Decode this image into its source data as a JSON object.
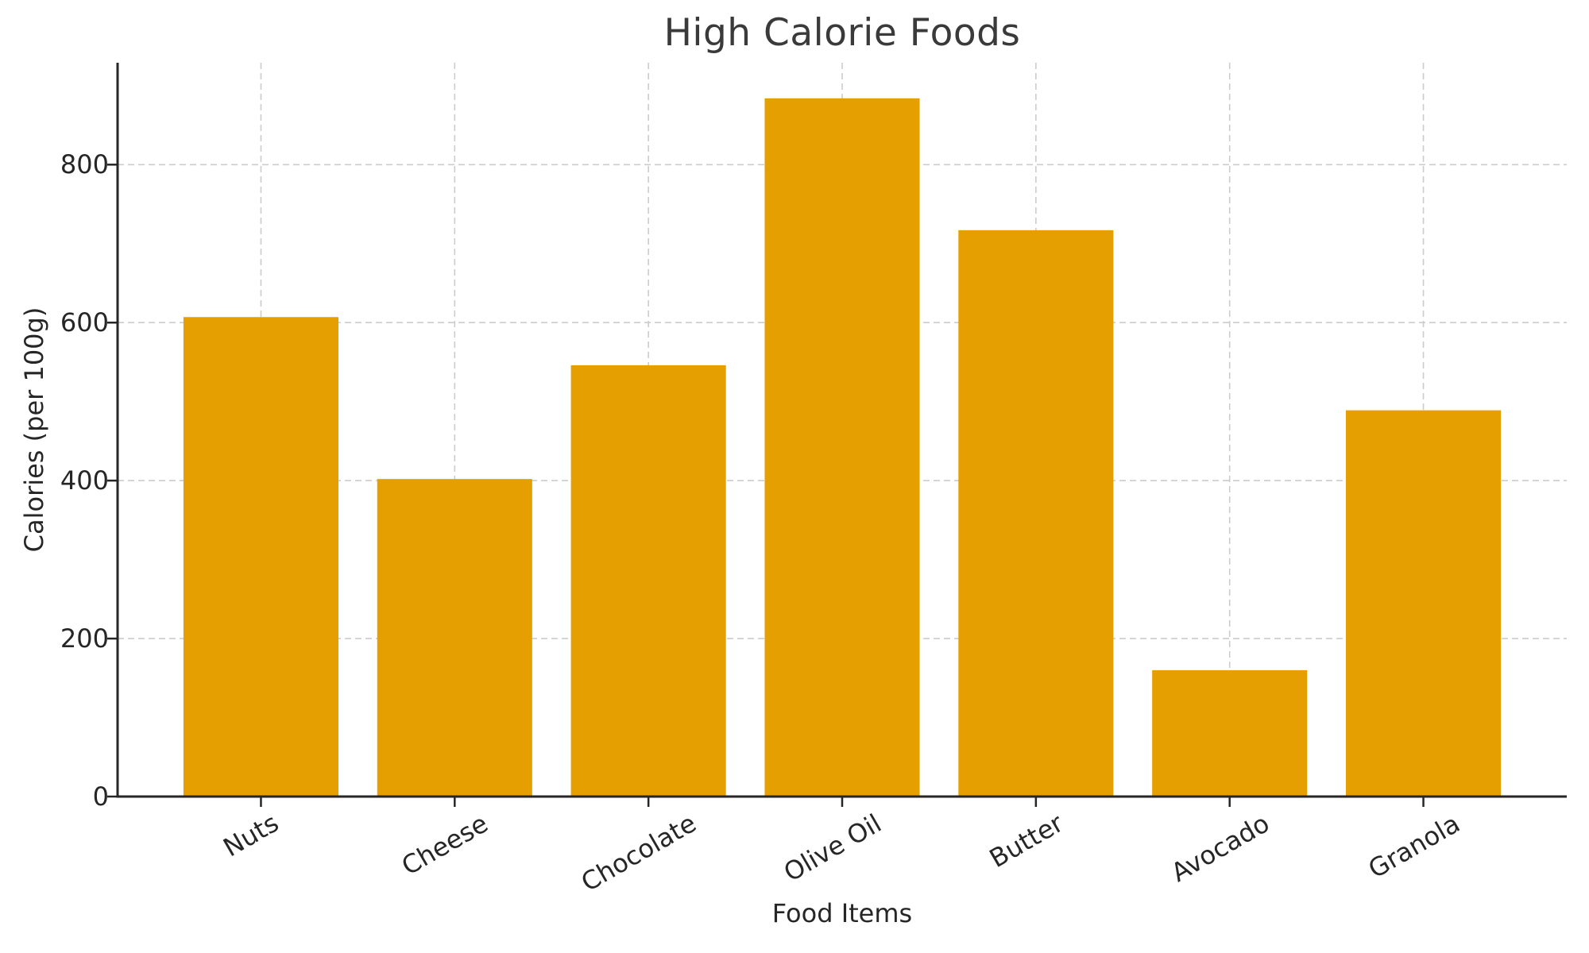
{
  "chart_data": {
    "type": "bar",
    "title": "High Calorie Foods",
    "xlabel": "Food Items",
    "ylabel": "Calories (per 100g)",
    "categories": [
      "Nuts",
      "Cheese",
      "Chocolate",
      "Olive Oil",
      "Butter",
      "Avocado",
      "Granola"
    ],
    "values": [
      607,
      402,
      546,
      884,
      717,
      160,
      489
    ],
    "yticks": [
      0,
      200,
      400,
      600,
      800
    ],
    "ylim": [
      0,
      929
    ],
    "bar_color": "#E69F00",
    "grid": "on",
    "grid_line_style": "dashed",
    "grid_color": "#cccccc",
    "axis_color": "#262626",
    "tick_text_color": "#262626",
    "title_color": "#3a3a3a",
    "background_color": "#ffffff",
    "x_tick_label_rotation_deg": 30,
    "legend_position": "none"
  }
}
